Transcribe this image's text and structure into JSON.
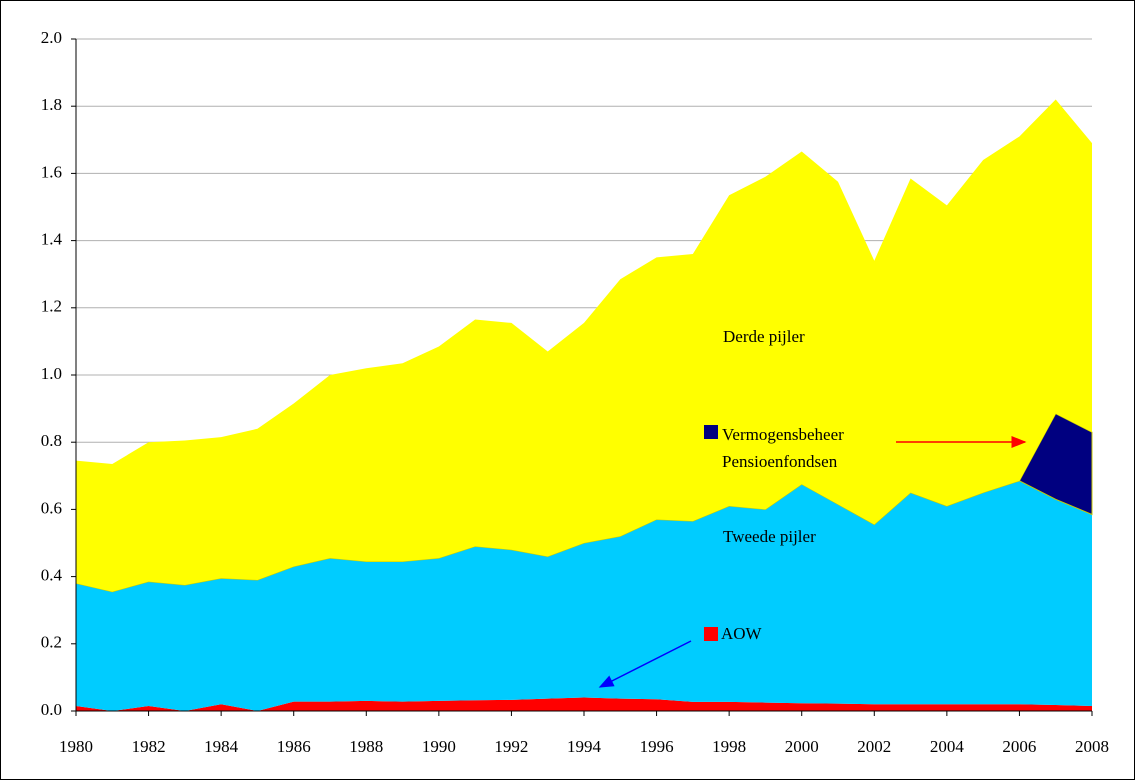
{
  "chart_data": {
    "type": "stacked_area",
    "x": [
      1980,
      1981,
      1982,
      1983,
      1984,
      1985,
      1986,
      1987,
      1988,
      1989,
      1990,
      1991,
      1992,
      1993,
      1994,
      1995,
      1996,
      1997,
      1998,
      1999,
      2000,
      2001,
      2002,
      2003,
      2004,
      2005,
      2006,
      2007,
      2008
    ],
    "series": [
      {
        "name": "AOW",
        "color": "#ff0000",
        "values": [
          0.015,
          0,
          0.015,
          0,
          0.02,
          0,
          0.028,
          0.028,
          0.03,
          0.028,
          0.03,
          0.032,
          0.033,
          0.037,
          0.04,
          0.037,
          0.035,
          0.027,
          0.027,
          0.025,
          0.023,
          0.022,
          0.02,
          0.02,
          0.02,
          0.02,
          0.02,
          0.018,
          0.015
        ]
      },
      {
        "name": "Tweede pijler",
        "color": "#00ccff",
        "values": [
          0.365,
          0.355,
          0.37,
          0.375,
          0.375,
          0.39,
          0.402,
          0.427,
          0.415,
          0.417,
          0.425,
          0.458,
          0.447,
          0.423,
          0.46,
          0.483,
          0.535,
          0.538,
          0.583,
          0.575,
          0.652,
          0.593,
          0.535,
          0.63,
          0.59,
          0.63,
          0.665,
          0.612,
          0.57
        ]
      },
      {
        "name": "Vermogensbeheer Pensioenfondsen",
        "color": "#000080",
        "values": [
          0,
          0,
          0,
          0,
          0,
          0,
          0,
          0,
          0,
          0,
          0,
          0,
          0,
          0,
          0,
          0,
          0,
          0,
          0,
          0,
          0,
          0,
          0,
          0,
          0,
          0,
          0,
          0.255,
          0.245
        ]
      },
      {
        "name": "Derde pijler",
        "color": "#ffff00",
        "values": [
          0.365,
          0.38,
          0.415,
          0.43,
          0.42,
          0.45,
          0.485,
          0.545,
          0.575,
          0.59,
          0.63,
          0.675,
          0.675,
          0.61,
          0.655,
          0.765,
          0.78,
          0.795,
          0.925,
          0.99,
          0.99,
          0.96,
          0.785,
          0.935,
          0.895,
          0.99,
          1.025,
          0.935,
          0.86
        ]
      }
    ],
    "xlim": [
      1980,
      2008
    ],
    "xticks": [
      1980,
      1982,
      1984,
      1986,
      1988,
      1990,
      1992,
      1994,
      1996,
      1998,
      2000,
      2002,
      2004,
      2006,
      2008
    ],
    "ylim": [
      0,
      2
    ],
    "yticks": [
      {
        "value": 0,
        "label": "0.0"
      },
      0.2,
      0.4,
      0.6,
      0.8,
      {
        "value": 1,
        "label": "1.0"
      },
      1.2,
      1.4,
      1.6,
      1.8,
      {
        "value": 2,
        "label": "2.0"
      }
    ],
    "grid": true
  }
}
